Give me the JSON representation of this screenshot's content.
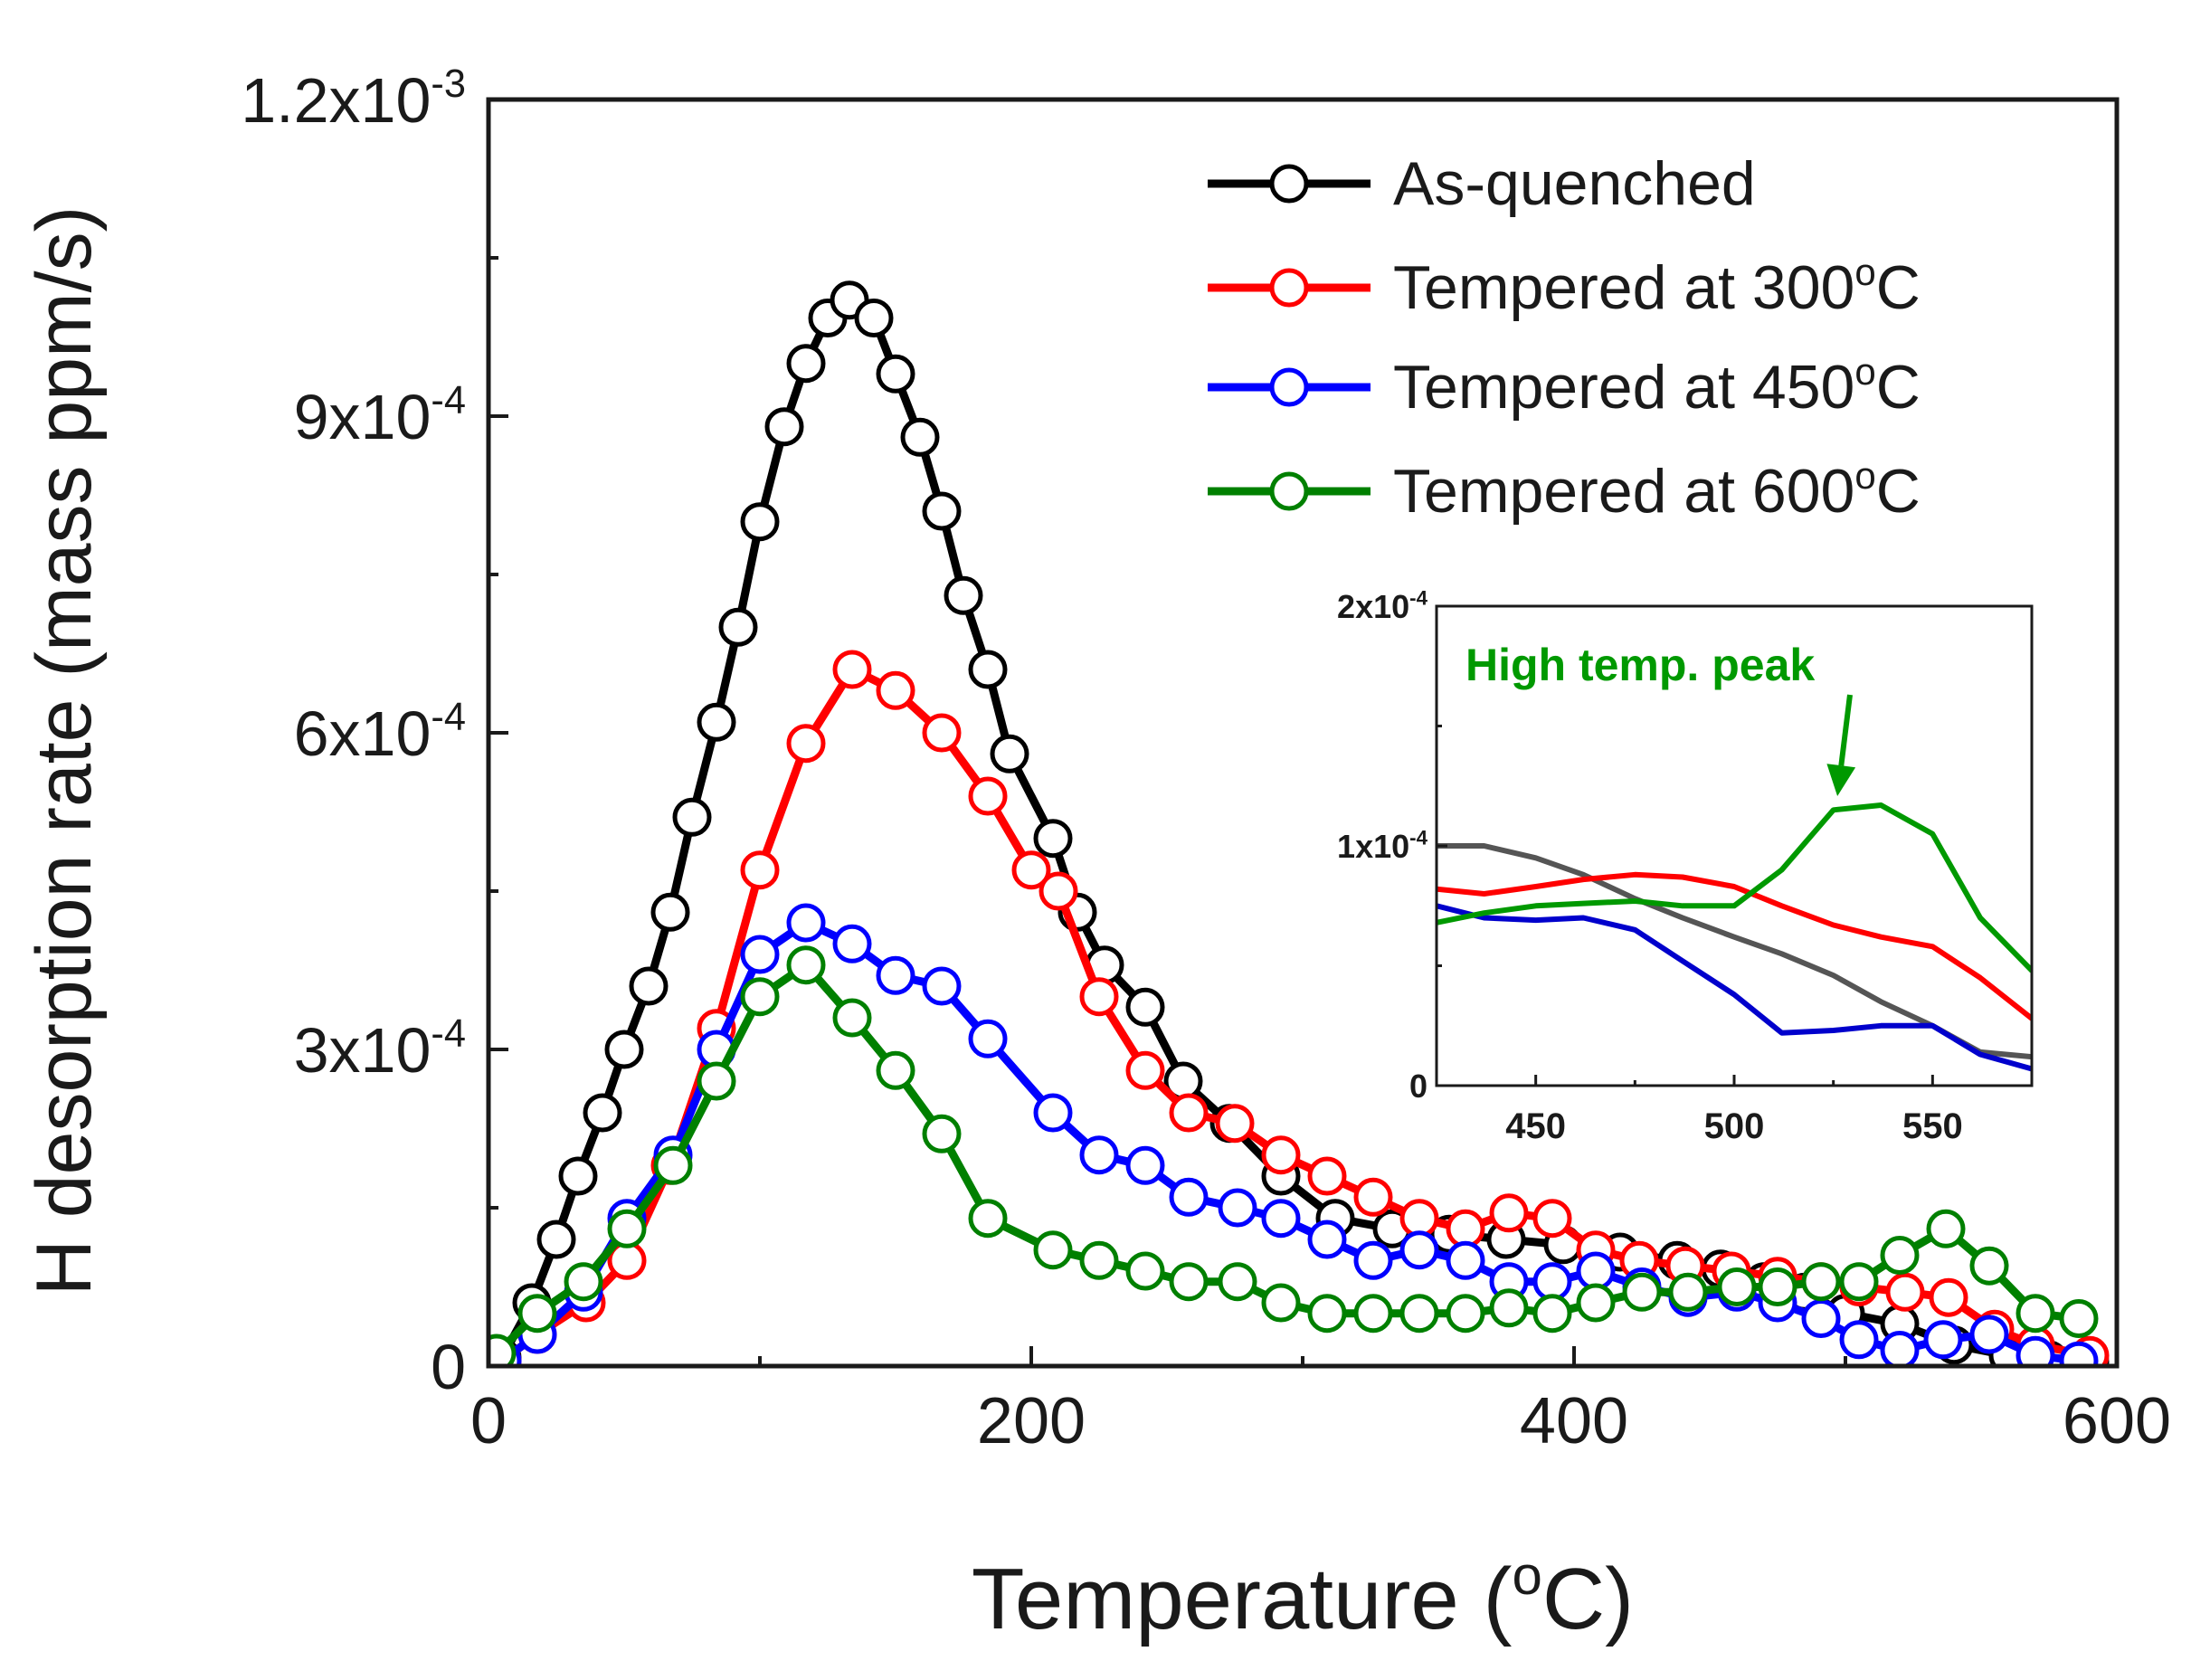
{
  "chart_data": [
    {
      "type": "line",
      "role": "main",
      "xlabel": "Temperature (",
      "xlabel_sup": "o",
      "xlabel_tail": "C)",
      "ylabel": "H desorption rate (mass ppm/s)",
      "xlim": [
        0,
        600
      ],
      "ylim": [
        0,
        0.0012
      ],
      "x_ticks": [
        0,
        200,
        400,
        600
      ],
      "x_tick_labels": [
        "0",
        "200",
        "400",
        "600"
      ],
      "y_ticks": [
        {
          "value": 0,
          "mantissa": "0",
          "base": "",
          "exp": ""
        },
        {
          "value": 0.0003,
          "mantissa": "3",
          "base": "x10",
          "exp": "-4"
        },
        {
          "value": 0.0006,
          "mantissa": "6",
          "base": "x10",
          "exp": "-4"
        },
        {
          "value": 0.0009,
          "mantissa": "9",
          "base": "x10",
          "exp": "-4"
        },
        {
          "value": 0.0012,
          "mantissa": "1.2",
          "base": "x10",
          "exp": "-3"
        }
      ],
      "series": [
        {
          "name": "As-quenched",
          "color": "#000000",
          "marker": "open-circle",
          "points": [
            [
              5,
              8e-06
            ],
            [
              16,
              6e-05
            ],
            [
              25,
              0.00012
            ],
            [
              33,
              0.00018
            ],
            [
              42,
              0.00024
            ],
            [
              50,
              0.0003
            ],
            [
              59,
              0.00036
            ],
            [
              67,
              0.00043
            ],
            [
              75,
              0.00052
            ],
            [
              84,
              0.00061
            ],
            [
              92,
              0.0007
            ],
            [
              100,
              0.0008
            ],
            [
              109,
              0.00089
            ],
            [
              117,
              0.00095
            ],
            [
              125,
              0.000993
            ],
            [
              133,
              0.00101
            ],
            [
              142,
              0.000993
            ],
            [
              150,
              0.00094
            ],
            [
              159,
              0.00088
            ],
            [
              167,
              0.00081
            ],
            [
              175,
              0.00073
            ],
            [
              184,
              0.00066
            ],
            [
              192,
              0.00058
            ],
            [
              208,
              0.0005
            ],
            [
              217,
              0.00043
            ],
            [
              227,
              0.00038
            ],
            [
              242,
              0.00034
            ],
            [
              256,
              0.00027
            ],
            [
              273,
              0.00023
            ],
            [
              292,
              0.00018
            ],
            [
              312,
              0.00014
            ],
            [
              333,
              0.00013
            ],
            [
              354,
              0.000125
            ],
            [
              375,
              0.00012
            ],
            [
              396,
              0.000115
            ],
            [
              417,
              0.000108
            ],
            [
              438,
              0.0001
            ],
            [
              454,
              9.2e-05
            ],
            [
              470,
              8e-05
            ],
            [
              485,
              7e-05
            ],
            [
              500,
              5e-05
            ],
            [
              520,
              4e-05
            ],
            [
              540,
              2e-05
            ],
            [
              560,
              1e-05
            ],
            [
              575,
              6e-06
            ],
            [
              590,
              4e-06
            ]
          ]
        },
        {
          "name": "Tempered at 300",
          "name_sup": "o",
          "name_tail": "C",
          "color": "#ff0000",
          "marker": "open-circle",
          "points": [
            [
              5,
              5e-06
            ],
            [
              18,
              3e-05
            ],
            [
              36,
              6e-05
            ],
            [
              51,
              0.0001
            ],
            [
              67,
              0.00019
            ],
            [
              84,
              0.00032
            ],
            [
              100,
              0.00047
            ],
            [
              117,
              0.00059
            ],
            [
              134,
              0.00066
            ],
            [
              150,
              0.00064
            ],
            [
              167,
              0.0006
            ],
            [
              184,
              0.00054
            ],
            [
              200,
              0.00047
            ],
            [
              210,
              0.00045
            ],
            [
              225,
              0.00035
            ],
            [
              242,
              0.00028
            ],
            [
              258,
              0.00024
            ],
            [
              275,
              0.00023
            ],
            [
              292,
              0.0002
            ],
            [
              309,
              0.00018
            ],
            [
              326,
              0.00016
            ],
            [
              343,
              0.00014
            ],
            [
              360,
              0.00013
            ],
            [
              376,
              0.000145
            ],
            [
              392,
              0.00014
            ],
            [
              408,
              0.00011
            ],
            [
              424,
              0.0001
            ],
            [
              441,
              9.5e-05
            ],
            [
              458,
              9e-05
            ],
            [
              475,
              8.5e-05
            ],
            [
              491,
              8e-05
            ],
            [
              505,
              7.5e-05
            ],
            [
              522,
              7e-05
            ],
            [
              538,
              6.5e-05
            ],
            [
              555,
              3.5e-05
            ],
            [
              570,
              2e-05
            ],
            [
              590,
              1e-05
            ]
          ]
        },
        {
          "name": "Tempered at 450",
          "name_sup": "o",
          "name_tail": "C",
          "color": "#0000ff",
          "marker": "open-circle",
          "points": [
            [
              5,
              5e-06
            ],
            [
              18,
              3e-05
            ],
            [
              35,
              7e-05
            ],
            [
              51,
              0.00014
            ],
            [
              68,
              0.0002
            ],
            [
              84,
              0.0003
            ],
            [
              100,
              0.00039
            ],
            [
              117,
              0.00042
            ],
            [
              134,
              0.0004
            ],
            [
              150,
              0.00037
            ],
            [
              167,
              0.00036
            ],
            [
              184,
              0.00031
            ],
            [
              208,
              0.00024
            ],
            [
              225,
              0.0002
            ],
            [
              242,
              0.00019
            ],
            [
              258,
              0.00016
            ],
            [
              276,
              0.00015
            ],
            [
              292,
              0.00014
            ],
            [
              309,
              0.00012
            ],
            [
              326,
              0.0001
            ],
            [
              343,
              0.00011
            ],
            [
              360,
              0.0001
            ],
            [
              376,
              8e-05
            ],
            [
              392,
              8e-05
            ],
            [
              408,
              9e-05
            ],
            [
              425,
              7.5e-05
            ],
            [
              442,
              6.5e-05
            ],
            [
              460,
              7e-05
            ],
            [
              475,
              6e-05
            ],
            [
              491,
              4.5e-05
            ],
            [
              505,
              2.5e-05
            ],
            [
              520,
              1.5e-05
            ],
            [
              536,
              2.5e-05
            ],
            [
              553,
              3e-05
            ],
            [
              570,
              1e-05
            ],
            [
              586,
              5e-06
            ]
          ]
        },
        {
          "name": "Tempered at 600",
          "name_sup": "o",
          "name_tail": "C",
          "color": "#008000",
          "marker": "open-circle",
          "points": [
            [
              3,
              1.2e-05
            ],
            [
              18,
              5e-05
            ],
            [
              35,
              8e-05
            ],
            [
              51,
              0.00013
            ],
            [
              68,
              0.00019
            ],
            [
              84,
              0.00027
            ],
            [
              100,
              0.00035
            ],
            [
              117,
              0.00038
            ],
            [
              134,
              0.00033
            ],
            [
              150,
              0.00028
            ],
            [
              167,
              0.00022
            ],
            [
              184,
              0.00014
            ],
            [
              208,
              0.00011
            ],
            [
              225,
              0.0001
            ],
            [
              242,
              9e-05
            ],
            [
              258,
              8e-05
            ],
            [
              276,
              8e-05
            ],
            [
              292,
              6e-05
            ],
            [
              309,
              5e-05
            ],
            [
              326,
              5e-05
            ],
            [
              343,
              5e-05
            ],
            [
              360,
              5e-05
            ],
            [
              376,
              5.5e-05
            ],
            [
              392,
              5e-05
            ],
            [
              408,
              6e-05
            ],
            [
              425,
              7e-05
            ],
            [
              442,
              7e-05
            ],
            [
              460,
              7.5e-05
            ],
            [
              475,
              7.5e-05
            ],
            [
              491,
              8e-05
            ],
            [
              505,
              8e-05
            ],
            [
              520,
              0.000105
            ],
            [
              537,
              0.00013
            ],
            [
              553,
              9.5e-05
            ],
            [
              570,
              5e-05
            ],
            [
              586,
              4.5e-05
            ]
          ]
        }
      ]
    },
    {
      "type": "line",
      "role": "inset",
      "xlim": [
        425,
        575
      ],
      "ylim": [
        0,
        0.0002
      ],
      "x_ticks": [
        450,
        500,
        550
      ],
      "x_tick_labels": [
        "450",
        "500",
        "550"
      ],
      "y_ticks": [
        {
          "value": 0,
          "mantissa": "0",
          "base": "",
          "exp": ""
        },
        {
          "value": 0.0001,
          "mantissa": "1",
          "base": "x10",
          "exp": "-4"
        },
        {
          "value": 0.0002,
          "mantissa": "2",
          "base": "x10",
          "exp": "-4"
        }
      ],
      "annotation": {
        "text": "High temp. peak",
        "color": "#009900",
        "points_to": [
          526,
          0.000117
        ]
      },
      "series": [
        {
          "name": "As-quenched",
          "color": "#555555",
          "points": [
            [
              425,
              0.0001
            ],
            [
              437,
              0.0001
            ],
            [
              450,
              9.5e-05
            ],
            [
              462,
              8.8e-05
            ],
            [
              475,
              7.8e-05
            ],
            [
              487,
              7e-05
            ],
            [
              500,
              6.2e-05
            ],
            [
              512,
              5.5e-05
            ],
            [
              525,
              4.6e-05
            ],
            [
              537,
              3.5e-05
            ],
            [
              550,
              2.5e-05
            ],
            [
              562,
              1.4e-05
            ],
            [
              575,
              1.2e-05
            ]
          ]
        },
        {
          "name": "Tempered at 300",
          "color": "#ff0000",
          "points": [
            [
              425,
              8.2e-05
            ],
            [
              437,
              8e-05
            ],
            [
              450,
              8.3e-05
            ],
            [
              462,
              8.6e-05
            ],
            [
              475,
              8.8e-05
            ],
            [
              487,
              8.7e-05
            ],
            [
              500,
              8.3e-05
            ],
            [
              512,
              7.5e-05
            ],
            [
              525,
              6.7e-05
            ],
            [
              537,
              6.2e-05
            ],
            [
              550,
              5.8e-05
            ],
            [
              562,
              4.5e-05
            ],
            [
              575,
              2.8e-05
            ]
          ]
        },
        {
          "name": "Tempered at 450",
          "color": "#0000cc",
          "points": [
            [
              425,
              7.5e-05
            ],
            [
              437,
              7e-05
            ],
            [
              450,
              6.9e-05
            ],
            [
              462,
              7e-05
            ],
            [
              475,
              6.5e-05
            ],
            [
              487,
              5.2e-05
            ],
            [
              500,
              3.8e-05
            ],
            [
              512,
              2.2e-05
            ],
            [
              525,
              2.3e-05
            ],
            [
              537,
              2.5e-05
            ],
            [
              550,
              2.5e-05
            ],
            [
              562,
              1.3e-05
            ],
            [
              575,
              7e-06
            ]
          ]
        },
        {
          "name": "Tempered at 600",
          "color": "#009900",
          "points": [
            [
              425,
              6.8e-05
            ],
            [
              437,
              7.2e-05
            ],
            [
              450,
              7.5e-05
            ],
            [
              462,
              7.6e-05
            ],
            [
              475,
              7.7e-05
            ],
            [
              487,
              7.5e-05
            ],
            [
              500,
              7.5e-05
            ],
            [
              512,
              9e-05
            ],
            [
              525,
              0.000115
            ],
            [
              537,
              0.000117
            ],
            [
              550,
              0.000105
            ],
            [
              562,
              7e-05
            ],
            [
              575,
              4.8e-05
            ]
          ]
        }
      ]
    }
  ]
}
